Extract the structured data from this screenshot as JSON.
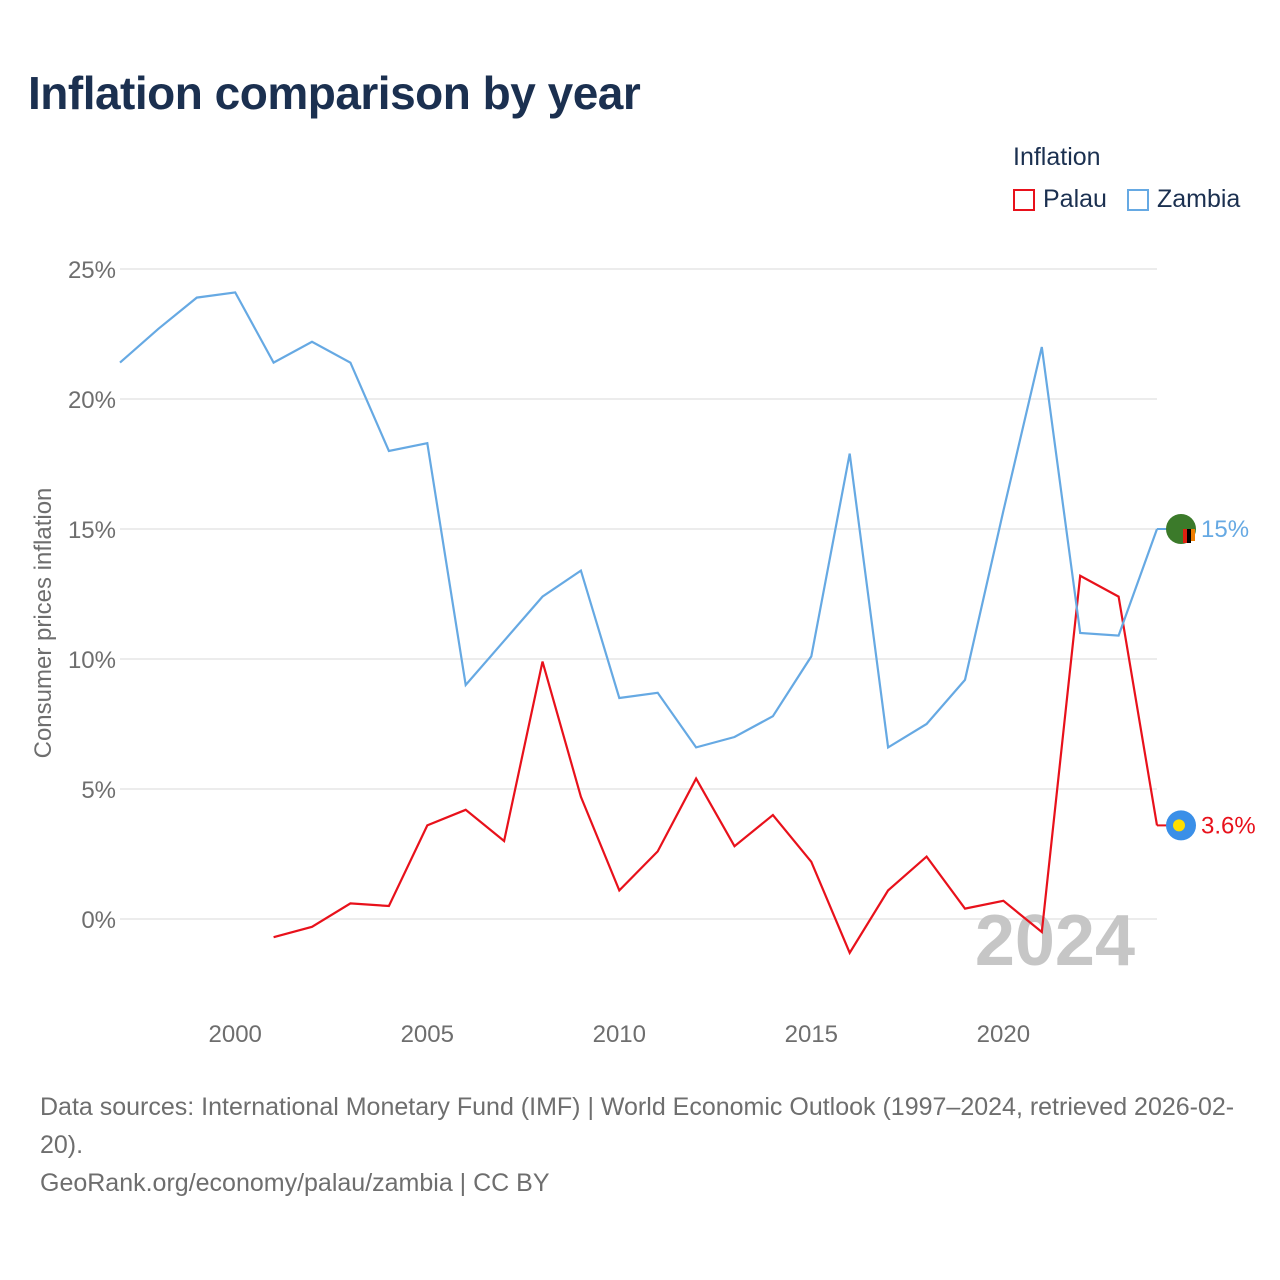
{
  "title": "Inflation comparison by year",
  "legend": {
    "title": "Inflation",
    "items": [
      {
        "label": "Palau",
        "color": "#e8111b"
      },
      {
        "label": "Zambia",
        "color": "#66a9e3"
      }
    ]
  },
  "footer": {
    "sources": "Data sources: International Monetary Fund (IMF) | World Economic Outlook (1997–2024, retrieved 2026-02-20).",
    "credit": "GeoRank.org/economy/palau/zambia | CC BY"
  },
  "chart_data": {
    "type": "line",
    "title": "Inflation comparison by year",
    "xlabel": "",
    "ylabel": "Consumer prices inflation",
    "xlim": [
      1997,
      2024
    ],
    "ylim": [
      -3,
      26
    ],
    "grid": true,
    "x_ticks": [
      2000,
      2005,
      2010,
      2015,
      2020
    ],
    "y_ticks": [
      0,
      5,
      10,
      15,
      20,
      25
    ],
    "y_tick_labels": [
      "0%",
      "5%",
      "10%",
      "15%",
      "20%",
      "25%"
    ],
    "watermark_year": "2024",
    "series": [
      {
        "name": "Palau",
        "color": "#e8111b",
        "end_label": "3.6%",
        "flag_icon": "palau-flag-icon",
        "x": [
          2001,
          2002,
          2003,
          2004,
          2005,
          2006,
          2007,
          2008,
          2009,
          2010,
          2011,
          2012,
          2013,
          2014,
          2015,
          2016,
          2017,
          2018,
          2019,
          2020,
          2021,
          2022,
          2023,
          2024
        ],
        "values": [
          -0.7,
          -0.3,
          0.6,
          0.5,
          3.6,
          4.2,
          3.0,
          9.9,
          4.7,
          1.1,
          2.6,
          5.4,
          2.8,
          4.0,
          2.2,
          -1.3,
          1.1,
          2.4,
          0.4,
          0.7,
          -0.5,
          13.2,
          12.4,
          3.6
        ]
      },
      {
        "name": "Zambia",
        "color": "#66a9e3",
        "end_label": "15%",
        "flag_icon": "zambia-flag-icon",
        "x": [
          1997,
          1998,
          1999,
          2000,
          2001,
          2002,
          2003,
          2004,
          2005,
          2006,
          2007,
          2008,
          2009,
          2010,
          2011,
          2012,
          2013,
          2014,
          2015,
          2016,
          2017,
          2018,
          2019,
          2020,
          2021,
          2022,
          2023,
          2024
        ],
        "values": [
          21.4,
          22.7,
          23.9,
          24.1,
          21.4,
          22.2,
          21.4,
          18.0,
          18.3,
          9.0,
          10.7,
          12.4,
          13.4,
          8.5,
          8.7,
          6.6,
          7.0,
          7.8,
          10.1,
          17.9,
          6.6,
          7.5,
          9.2,
          15.7,
          22.0,
          11.0,
          10.9,
          15.0
        ]
      }
    ]
  }
}
